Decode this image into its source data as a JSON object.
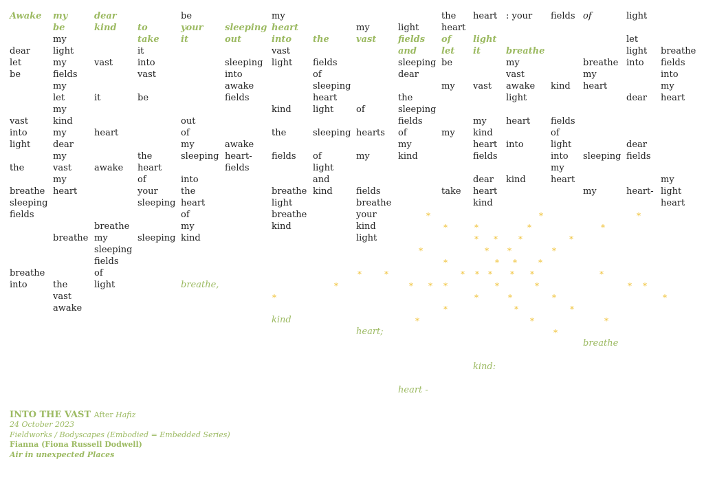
{
  "cols": [
    14,
    77,
    137,
    200,
    263,
    327,
    395,
    455,
    518,
    579,
    642,
    688,
    736,
    801,
    848,
    911,
    961
  ],
  "rows": [
    16,
    33,
    50,
    67,
    84,
    101,
    118,
    135,
    152,
    169,
    186,
    203,
    220,
    237,
    254,
    271,
    288,
    305,
    322,
    339,
    356,
    373,
    390,
    407,
    424,
    441,
    458,
    475,
    492,
    509,
    526,
    543,
    560
  ],
  "words": [
    [
      0,
      0,
      "Awake",
      "gb"
    ],
    [
      1,
      0,
      "my",
      "gb"
    ],
    [
      2,
      0,
      "dear",
      "gb"
    ],
    [
      4,
      0,
      "be",
      ""
    ],
    [
      6,
      0,
      "my",
      ""
    ],
    [
      10,
      0,
      "the",
      ""
    ],
    [
      11,
      0,
      "heart",
      ""
    ],
    [
      12,
      0,
      ": your",
      ""
    ],
    [
      13,
      0,
      "fields",
      ""
    ],
    [
      14,
      0,
      "of",
      "i"
    ],
    [
      15,
      0,
      "light",
      ""
    ],
    [
      1,
      1,
      "be",
      "gb"
    ],
    [
      2,
      1,
      "kind",
      "gb"
    ],
    [
      3,
      1,
      "to",
      "gb"
    ],
    [
      4,
      1,
      "your",
      "gb"
    ],
    [
      5,
      1,
      "sleeping",
      "gb"
    ],
    [
      6,
      1,
      "heart",
      "gb"
    ],
    [
      8,
      1,
      "my",
      ""
    ],
    [
      9,
      1,
      "light",
      ""
    ],
    [
      10,
      1,
      "heart",
      ""
    ],
    [
      1,
      2,
      "my",
      ""
    ],
    [
      3,
      2,
      "take",
      "gb"
    ],
    [
      4,
      2,
      "it",
      "gb"
    ],
    [
      5,
      2,
      "out",
      "gb"
    ],
    [
      6,
      2,
      "into",
      "gb"
    ],
    [
      7,
      2,
      "the",
      "gb"
    ],
    [
      8,
      2,
      "vast",
      "gb"
    ],
    [
      9,
      2,
      "fields",
      "gb"
    ],
    [
      10,
      2,
      "of",
      "gb"
    ],
    [
      11,
      2,
      "light",
      "gb"
    ],
    [
      15,
      2,
      "let",
      ""
    ],
    [
      0,
      3,
      "dear",
      ""
    ],
    [
      1,
      3,
      "light",
      ""
    ],
    [
      3,
      3,
      "it",
      ""
    ],
    [
      6,
      3,
      "vast",
      ""
    ],
    [
      9,
      3,
      "and",
      "gb"
    ],
    [
      10,
      3,
      "let",
      "gb"
    ],
    [
      11,
      3,
      "it",
      "gb"
    ],
    [
      12,
      3,
      "breathe",
      "gb"
    ],
    [
      15,
      3,
      "light",
      ""
    ],
    [
      16,
      3,
      "breathe",
      ""
    ],
    [
      0,
      4,
      "let",
      ""
    ],
    [
      1,
      4,
      "my",
      ""
    ],
    [
      2,
      4,
      "vast",
      ""
    ],
    [
      3,
      4,
      "into",
      ""
    ],
    [
      5,
      4,
      "sleeping",
      ""
    ],
    [
      6,
      4,
      "light",
      ""
    ],
    [
      7,
      4,
      "fields",
      ""
    ],
    [
      9,
      4,
      "sleeping",
      ""
    ],
    [
      10,
      4,
      "be",
      ""
    ],
    [
      12,
      4,
      "my",
      ""
    ],
    [
      14,
      4,
      "breathe",
      ""
    ],
    [
      15,
      4,
      "into",
      ""
    ],
    [
      16,
      4,
      "fields",
      ""
    ],
    [
      0,
      5,
      "be",
      ""
    ],
    [
      1,
      5,
      "fields",
      ""
    ],
    [
      3,
      5,
      "vast",
      ""
    ],
    [
      5,
      5,
      "into",
      ""
    ],
    [
      7,
      5,
      "of",
      ""
    ],
    [
      9,
      5,
      "dear",
      ""
    ],
    [
      12,
      5,
      "vast",
      ""
    ],
    [
      14,
      5,
      "my",
      ""
    ],
    [
      16,
      5,
      "into",
      ""
    ],
    [
      1,
      6,
      "my",
      ""
    ],
    [
      5,
      6,
      "awake",
      ""
    ],
    [
      7,
      6,
      "sleeping",
      ""
    ],
    [
      10,
      6,
      "my",
      ""
    ],
    [
      11,
      6,
      "vast",
      ""
    ],
    [
      12,
      6,
      "awake",
      ""
    ],
    [
      13,
      6,
      "kind",
      ""
    ],
    [
      14,
      6,
      "heart",
      ""
    ],
    [
      16,
      6,
      "my",
      ""
    ],
    [
      1,
      7,
      "let",
      ""
    ],
    [
      2,
      7,
      "it",
      ""
    ],
    [
      3,
      7,
      "be",
      ""
    ],
    [
      5,
      7,
      "fields",
      ""
    ],
    [
      7,
      7,
      "heart",
      ""
    ],
    [
      9,
      7,
      "the",
      ""
    ],
    [
      12,
      7,
      "light",
      ""
    ],
    [
      15,
      7,
      "dear",
      ""
    ],
    [
      16,
      7,
      "heart",
      ""
    ],
    [
      1,
      8,
      "my",
      ""
    ],
    [
      6,
      8,
      "kind",
      ""
    ],
    [
      7,
      8,
      "light",
      ""
    ],
    [
      8,
      8,
      "of",
      ""
    ],
    [
      9,
      8,
      "sleeping",
      ""
    ],
    [
      0,
      9,
      "vast",
      ""
    ],
    [
      1,
      9,
      "kind",
      ""
    ],
    [
      4,
      9,
      "out",
      ""
    ],
    [
      9,
      9,
      "fields",
      ""
    ],
    [
      11,
      9,
      "my",
      ""
    ],
    [
      12,
      9,
      "heart",
      ""
    ],
    [
      13,
      9,
      "fields",
      ""
    ],
    [
      0,
      10,
      "into",
      ""
    ],
    [
      1,
      10,
      "my",
      ""
    ],
    [
      2,
      10,
      "heart",
      ""
    ],
    [
      4,
      10,
      "of",
      ""
    ],
    [
      6,
      10,
      "the",
      ""
    ],
    [
      7,
      10,
      "sleeping",
      ""
    ],
    [
      8,
      10,
      "hearts",
      ""
    ],
    [
      9,
      10,
      "of",
      ""
    ],
    [
      10,
      10,
      "my",
      ""
    ],
    [
      11,
      10,
      "kind",
      ""
    ],
    [
      13,
      10,
      "of",
      ""
    ],
    [
      0,
      11,
      "light",
      ""
    ],
    [
      1,
      11,
      "dear",
      ""
    ],
    [
      4,
      11,
      "my",
      ""
    ],
    [
      5,
      11,
      "awake",
      ""
    ],
    [
      9,
      11,
      "my",
      ""
    ],
    [
      11,
      11,
      "heart",
      ""
    ],
    [
      12,
      11,
      "into",
      ""
    ],
    [
      13,
      11,
      "light",
      ""
    ],
    [
      15,
      11,
      "dear",
      ""
    ],
    [
      1,
      12,
      "my",
      ""
    ],
    [
      3,
      12,
      "the",
      ""
    ],
    [
      4,
      12,
      "sleeping",
      ""
    ],
    [
      5,
      12,
      "heart-",
      ""
    ],
    [
      6,
      12,
      "fields",
      ""
    ],
    [
      7,
      12,
      "of",
      ""
    ],
    [
      8,
      12,
      "my",
      ""
    ],
    [
      9,
      12,
      "kind",
      ""
    ],
    [
      11,
      12,
      "fields",
      ""
    ],
    [
      13,
      12,
      "into",
      ""
    ],
    [
      14,
      12,
      "sleeping",
      ""
    ],
    [
      15,
      12,
      "fields",
      ""
    ],
    [
      0,
      13,
      "the",
      ""
    ],
    [
      1,
      13,
      "vast",
      ""
    ],
    [
      2,
      13,
      "awake",
      ""
    ],
    [
      3,
      13,
      "heart",
      ""
    ],
    [
      5,
      13,
      "fields",
      ""
    ],
    [
      7,
      13,
      "light",
      ""
    ],
    [
      13,
      13,
      "my",
      ""
    ],
    [
      1,
      14,
      "my",
      ""
    ],
    [
      3,
      14,
      "of",
      ""
    ],
    [
      4,
      14,
      "into",
      ""
    ],
    [
      7,
      14,
      "and",
      ""
    ],
    [
      11,
      14,
      "dear",
      ""
    ],
    [
      12,
      14,
      "kind",
      ""
    ],
    [
      13,
      14,
      "heart",
      ""
    ],
    [
      16,
      14,
      "my",
      ""
    ],
    [
      0,
      15,
      "breathe",
      ""
    ],
    [
      1,
      15,
      "heart",
      ""
    ],
    [
      3,
      15,
      "your",
      ""
    ],
    [
      4,
      15,
      "the",
      ""
    ],
    [
      6,
      15,
      "breathe",
      ""
    ],
    [
      7,
      15,
      "kind",
      ""
    ],
    [
      8,
      15,
      "fields",
      ""
    ],
    [
      10,
      15,
      "take",
      ""
    ],
    [
      11,
      15,
      "heart",
      ""
    ],
    [
      14,
      15,
      "my",
      ""
    ],
    [
      15,
      15,
      "heart-",
      ""
    ],
    [
      16,
      15,
      "light",
      ""
    ],
    [
      0,
      16,
      "sleeping",
      ""
    ],
    [
      3,
      16,
      "sleeping",
      ""
    ],
    [
      4,
      16,
      "heart",
      ""
    ],
    [
      6,
      16,
      "light",
      ""
    ],
    [
      8,
      16,
      "breathe",
      ""
    ],
    [
      11,
      16,
      "kind",
      ""
    ],
    [
      16,
      16,
      "heart",
      ""
    ],
    [
      0,
      17,
      "fields",
      ""
    ],
    [
      4,
      17,
      "of",
      ""
    ],
    [
      6,
      17,
      "breathe",
      ""
    ],
    [
      8,
      17,
      "your",
      ""
    ],
    [
      2,
      18,
      "breathe",
      ""
    ],
    [
      4,
      18,
      "my",
      ""
    ],
    [
      6,
      18,
      "kind",
      ""
    ],
    [
      8,
      18,
      "kind",
      ""
    ],
    [
      1,
      19,
      "breathe",
      ""
    ],
    [
      2,
      19,
      "my",
      ""
    ],
    [
      3,
      19,
      "sleeping",
      ""
    ],
    [
      4,
      19,
      "kind",
      ""
    ],
    [
      8,
      19,
      "light",
      ""
    ],
    [
      2,
      20,
      "sleeping",
      ""
    ],
    [
      2,
      21,
      "fields",
      ""
    ],
    [
      0,
      22,
      "breathe",
      ""
    ],
    [
      2,
      22,
      "of",
      ""
    ],
    [
      0,
      23,
      "into",
      ""
    ],
    [
      1,
      23,
      "the",
      ""
    ],
    [
      2,
      23,
      "light",
      ""
    ],
    [
      4,
      23,
      "breathe,",
      "g"
    ],
    [
      1,
      24,
      "vast",
      ""
    ],
    [
      1,
      25,
      "awake",
      ""
    ],
    [
      6,
      26,
      "kind",
      "g"
    ],
    [
      8,
      27,
      "heart;",
      "g"
    ],
    [
      14,
      28,
      "breathe",
      "g"
    ],
    [
      11,
      30,
      "kind:",
      "g"
    ],
    [
      9,
      32,
      "heart -",
      "g"
    ]
  ],
  "stars": [
    [
      620,
      308
    ],
    [
      784,
      308
    ],
    [
      926,
      308
    ],
    [
      645,
      325
    ],
    [
      690,
      325
    ],
    [
      767,
      325
    ],
    [
      874,
      325
    ],
    [
      690,
      342
    ],
    [
      718,
      342
    ],
    [
      754,
      342
    ],
    [
      828,
      342
    ],
    [
      609,
      359
    ],
    [
      705,
      359
    ],
    [
      738,
      359
    ],
    [
      803,
      359
    ],
    [
      645,
      376
    ],
    [
      720,
      376
    ],
    [
      746,
      376
    ],
    [
      783,
      376
    ],
    [
      520,
      393
    ],
    [
      559,
      393
    ],
    [
      670,
      393
    ],
    [
      691,
      393
    ],
    [
      710,
      393
    ],
    [
      742,
      393
    ],
    [
      771,
      393
    ],
    [
      872,
      393
    ],
    [
      486,
      410
    ],
    [
      595,
      410
    ],
    [
      623,
      410
    ],
    [
      645,
      410
    ],
    [
      720,
      410
    ],
    [
      778,
      410
    ],
    [
      913,
      410
    ],
    [
      935,
      410
    ],
    [
      396,
      427
    ],
    [
      690,
      427
    ],
    [
      739,
      427
    ],
    [
      803,
      427
    ],
    [
      964,
      427
    ],
    [
      645,
      444
    ],
    [
      748,
      444
    ],
    [
      829,
      444
    ],
    [
      604,
      461
    ],
    [
      771,
      461
    ],
    [
      879,
      461
    ],
    [
      805,
      478
    ]
  ],
  "credits": {
    "title": "INTO THE VAST",
    "after": "After",
    "after_name": "Hafiz",
    "date": "24 October 2023",
    "series": "Fieldworks / Bodyscapes (Embodied = Embedded Series)",
    "author": "Fianna (Fiona Russell Dodwell)",
    "tagline": "Air in unexpected Places"
  },
  "colors": {
    "accent_green": "#9cba62",
    "star_gold": "#f0c33a",
    "text": "#222222"
  }
}
